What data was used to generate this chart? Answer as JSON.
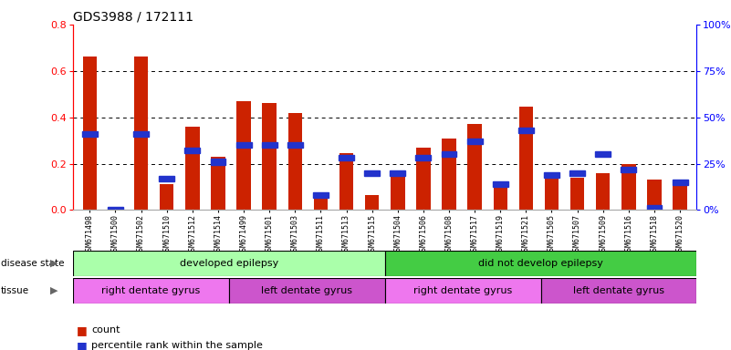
{
  "title": "GDS3988 / 172111",
  "samples": [
    "GSM671498",
    "GSM671500",
    "GSM671502",
    "GSM671510",
    "GSM671512",
    "GSM671514",
    "GSM671499",
    "GSM671501",
    "GSM671503",
    "GSM671511",
    "GSM671513",
    "GSM671515",
    "GSM671504",
    "GSM671506",
    "GSM671508",
    "GSM671517",
    "GSM671519",
    "GSM671521",
    "GSM671505",
    "GSM671507",
    "GSM671509",
    "GSM671516",
    "GSM671518",
    "GSM671520"
  ],
  "count_values": [
    0.66,
    0.0,
    0.66,
    0.11,
    0.36,
    0.23,
    0.47,
    0.46,
    0.42,
    0.065,
    0.245,
    0.065,
    0.145,
    0.27,
    0.31,
    0.37,
    0.105,
    0.445,
    0.145,
    0.14,
    0.16,
    0.2,
    0.13,
    0.115
  ],
  "percentile_values": [
    41,
    0,
    41,
    17,
    32,
    26,
    35,
    35,
    35,
    8,
    28,
    20,
    20,
    28,
    30,
    37,
    14,
    43,
    19,
    20,
    30,
    22,
    1,
    15
  ],
  "bar_color": "#cc2200",
  "blue_color": "#2233cc",
  "disease_groups": [
    {
      "label": "developed epilepsy",
      "start": 0,
      "end": 11,
      "color": "#aaffaa"
    },
    {
      "label": "did not develop epilepsy",
      "start": 12,
      "end": 23,
      "color": "#44cc44"
    }
  ],
  "tissue_groups": [
    {
      "label": "right dentate gyrus",
      "start": 0,
      "end": 5,
      "color": "#ee77ee"
    },
    {
      "label": "left dentate gyrus",
      "start": 6,
      "end": 11,
      "color": "#cc55cc"
    },
    {
      "label": "right dentate gyrus",
      "start": 12,
      "end": 17,
      "color": "#ee77ee"
    },
    {
      "label": "left dentate gyrus",
      "start": 18,
      "end": 23,
      "color": "#cc55cc"
    }
  ],
  "ylim_left": [
    0,
    0.8
  ],
  "ylim_right": [
    0,
    100
  ],
  "yticks_left": [
    0,
    0.2,
    0.4,
    0.6,
    0.8
  ],
  "yticks_right": [
    0,
    25,
    50,
    75,
    100
  ]
}
